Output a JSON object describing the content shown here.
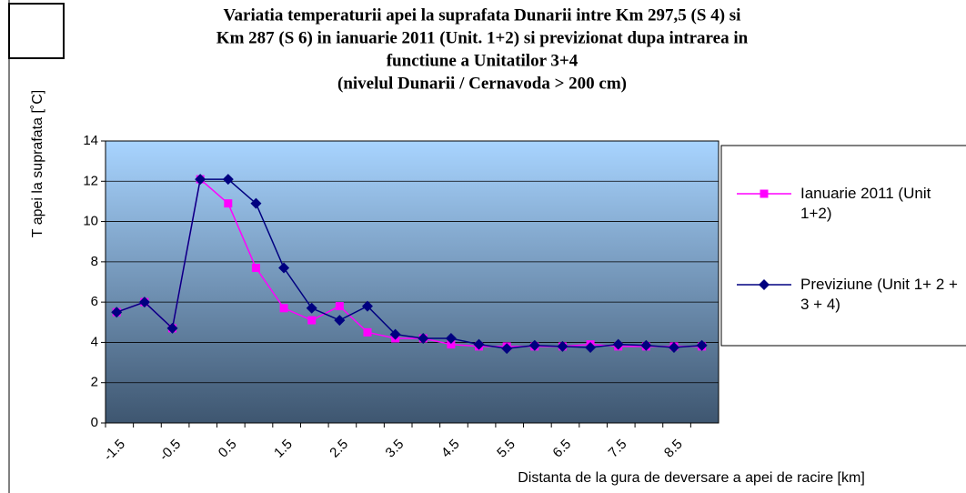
{
  "chart_data": {
    "type": "line",
    "title": [
      "Variatia temperaturii apei la suprafata Dunarii  intre Km 297,5 (S 4) si",
      "Km 287 (S 6) in ianuarie 2011 (Unit. 1+2) si previzionat dupa intrarea in",
      "functiune a Unitatilor 3+4",
      "(nivelul Dunarii / Cernavoda > 200 cm)"
    ],
    "y_label": "T apei la suprafata [˚C]",
    "x_label": "Distanta de la gura de deversare a apei de racire  [km]",
    "categories": [
      "-1.5",
      null,
      "-0.5",
      null,
      "0.5",
      null,
      "1.5",
      null,
      "2.5",
      null,
      "3.5",
      null,
      "4.5",
      null,
      "5.5",
      null,
      "6.5",
      null,
      "7.5",
      null,
      "8.5",
      null
    ],
    "series": [
      {
        "name": "Ianuarie 2011 (Unit 1+2)",
        "color": "#ff00ff",
        "marker": "square",
        "values": [
          5.5,
          6.0,
          4.7,
          12.1,
          10.9,
          7.7,
          5.7,
          5.1,
          5.8,
          4.5,
          4.2,
          4.2,
          3.9,
          3.8,
          3.8,
          3.8,
          3.8,
          3.9,
          3.8,
          3.8,
          3.8,
          3.8
        ]
      },
      {
        "name": "Previziune (Unit 1+ 2 + 3 + 4)",
        "color": "#000080",
        "marker": "diamond",
        "values": [
          5.5,
          6.0,
          4.7,
          12.1,
          12.1,
          10.9,
          7.7,
          5.7,
          5.1,
          5.8,
          4.4,
          4.2,
          4.2,
          3.9,
          3.7,
          3.85,
          3.8,
          3.75,
          3.9,
          3.85,
          3.75,
          3.85
        ]
      }
    ],
    "ylim": [
      0,
      14
    ],
    "yticks": [
      0,
      2,
      4,
      6,
      8,
      10,
      12,
      14
    ],
    "grid": true,
    "legend": "right"
  }
}
